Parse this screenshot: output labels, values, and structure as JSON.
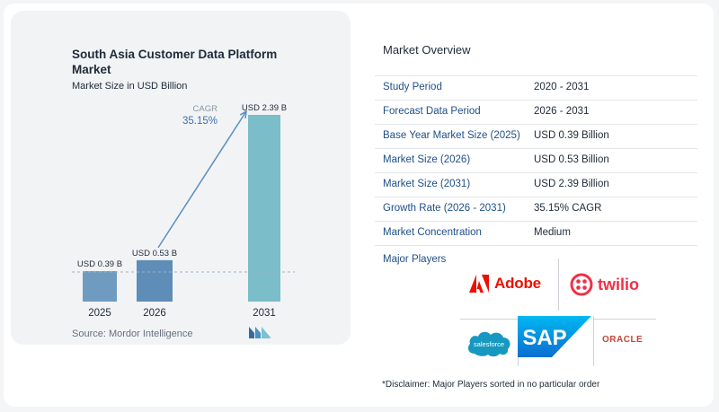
{
  "chart_data": {
    "type": "bar",
    "title": "South Asia Customer Data Platform Market",
    "subtitle": "Market Size in USD Billion",
    "categories": [
      "2025",
      "2026",
      "2031"
    ],
    "values": [
      0.39,
      0.53,
      2.39
    ],
    "data_labels": [
      "USD 0.39 B",
      "USD 0.53 B",
      "USD 2.39 B"
    ],
    "cagr_label": "CAGR",
    "cagr_value": "35.15%",
    "ylim": [
      0,
      2.39
    ],
    "grid": false,
    "colors": [
      "#6f9bc0",
      "#5e8db7",
      "#7bbdc9"
    ],
    "source": "Source:  Mordor Intelligence"
  },
  "overview": {
    "title": "Market Overview",
    "rows": [
      {
        "label": "Study Period",
        "value": "2020 - 2031"
      },
      {
        "label": "Forecast Data Period",
        "value": "2026 - 2031"
      },
      {
        "label": "Base Year Market Size (2025)",
        "value": "USD 0.39 Billion"
      },
      {
        "label": "Market Size (2026)",
        "value": "USD 0.53 Billion"
      },
      {
        "label": "Market Size (2031)",
        "value": "USD 2.39 Billion"
      },
      {
        "label": "Growth Rate (2026 - 2031)",
        "value": "35.15% CAGR"
      },
      {
        "label": "Market Concentration",
        "value": "Medium"
      }
    ]
  },
  "players": {
    "title": "Major Players",
    "logos": [
      {
        "name": "Adobe",
        "text": "Adobe",
        "icon": "adobe-icon"
      },
      {
        "name": "Twilio",
        "text": "twilio",
        "icon": "twilio-icon"
      },
      {
        "name": "Salesforce",
        "text": "salesforce",
        "icon": "salesforce-cloud-icon"
      },
      {
        "name": "SAP",
        "text": "SAP",
        "icon": "sap-icon"
      },
      {
        "name": "Oracle",
        "text": "ORACLE",
        "icon": "oracle-wordmark"
      }
    ]
  },
  "disclaimer": "*Disclaimer: Major Players sorted in no particular order"
}
